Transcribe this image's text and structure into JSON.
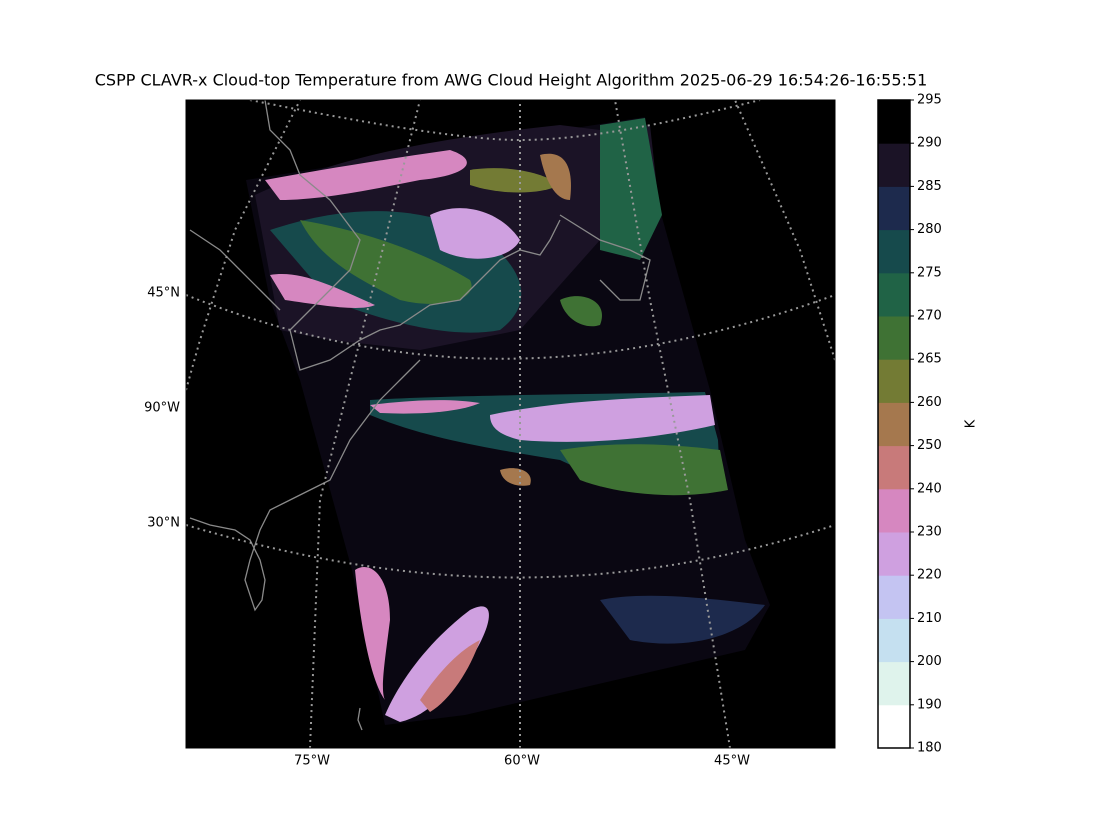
{
  "chart_data": {
    "type": "map",
    "title": "CSPP CLAVR-x Cloud-top Temperature from AWG Cloud Height Algorithm 2025-06-29 16:54:26-16:55:51",
    "lat_labels": [
      "45°N",
      "90°W",
      "30°N"
    ],
    "lon_labels": [
      "75°W",
      "60°W",
      "45°W"
    ],
    "colorbar": {
      "label": "K",
      "boundaries": [
        180,
        190,
        200,
        210,
        220,
        230,
        240,
        250,
        260,
        265,
        270,
        275,
        280,
        285,
        290,
        295
      ],
      "colors": [
        "#ffffff",
        "#dff3ec",
        "#c5e0f0",
        "#c4c4f2",
        "#cfa0e0",
        "#d687c0",
        "#c87a7a",
        "#a5784e",
        "#737b34",
        "#3f7234",
        "#206346",
        "#164a4c",
        "#1d2a4d",
        "#1b1326",
        "#000000"
      ]
    }
  }
}
